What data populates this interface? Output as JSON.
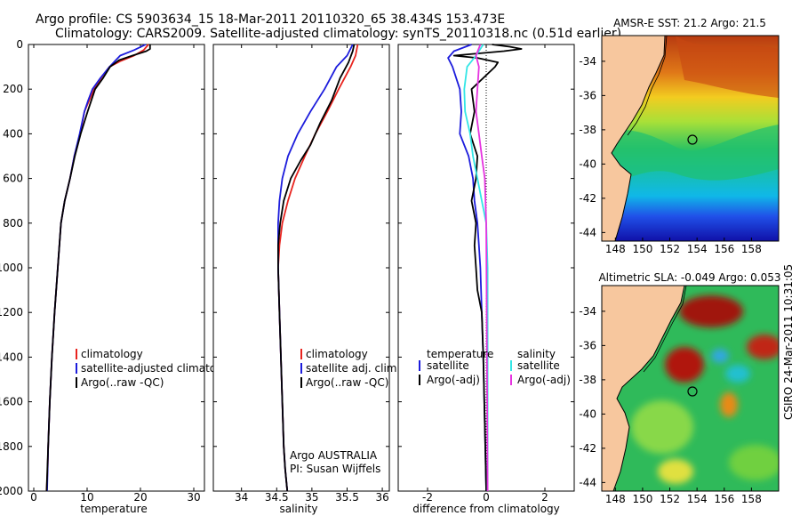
{
  "header": {
    "line1": "Argo profile: CS 5903634_15 18-Mar-2011 20110320_65 38.434S 153.473E",
    "line2": "Climatology: CARS2009. Satellite-adjusted climatology: synTS_20110318.nc (0.51d earlier)"
  },
  "stamp": "CSIRO 24-Mar-2011 10:31:05",
  "colors": {
    "red": "#e8231e",
    "blue": "#1c1cdc",
    "black": "#000000",
    "cyan": "#33e6e6",
    "magenta": "#e633e0"
  },
  "chart_data": [
    {
      "id": "temperature",
      "type": "line",
      "xlabel": "temperature",
      "ylabel": "",
      "xlim": [
        -1,
        32
      ],
      "xticks": [
        0,
        10,
        20,
        30
      ],
      "ylim": [
        2000,
        0
      ],
      "yticks": [
        0,
        200,
        400,
        600,
        800,
        1000,
        1200,
        1400,
        1600,
        1800,
        2000
      ],
      "legend": {
        "placement": "bottom-left",
        "entries": [
          "climatology",
          "satellite-adjusted climatology",
          "Argo(..raw -QC)"
        ]
      },
      "series": [
        {
          "name": "climatology",
          "color": "red",
          "x": [
            21.5,
            20.6,
            18.8,
            16.2,
            14.2,
            12.6,
            11.3,
            10.4,
            9.5,
            8.7,
            7.6,
            6.8,
            5.8,
            5.1,
            4.5,
            3.9,
            3.4,
            3.0,
            2.7,
            2.6,
            2.4
          ],
          "y": [
            0,
            25,
            50,
            75,
            100,
            150,
            200,
            250,
            300,
            400,
            500,
            600,
            700,
            800,
            1000,
            1200,
            1400,
            1600,
            1800,
            1900,
            2000
          ]
        },
        {
          "name": "satellite-adjusted climatology",
          "color": "blue",
          "x": [
            21.0,
            18.8,
            16.2,
            14.2,
            12.5,
            11.0,
            10.2,
            9.5,
            8.6,
            7.6,
            6.8,
            5.8,
            5.1,
            4.5,
            3.9,
            3.4,
            3.0,
            2.7,
            2.5
          ],
          "y": [
            0,
            25,
            50,
            100,
            150,
            200,
            250,
            300,
            400,
            500,
            600,
            700,
            800,
            1000,
            1200,
            1400,
            1600,
            1800,
            2000
          ]
        },
        {
          "name": "Argo(..raw -QC)",
          "color": "black",
          "x": [
            21.8,
            21.8,
            21.1,
            18.5,
            16.0,
            14.3,
            13.0,
            11.5,
            10.1,
            8.8,
            7.7,
            6.8,
            5.8,
            5.1,
            4.5,
            3.9,
            3.4,
            3.0,
            2.7,
            2.4
          ],
          "y": [
            0,
            20,
            30,
            50,
            70,
            100,
            150,
            200,
            300,
            400,
            500,
            600,
            700,
            800,
            1000,
            1200,
            1400,
            1600,
            1800,
            2000
          ]
        }
      ]
    },
    {
      "id": "salinity",
      "type": "line",
      "xlabel": "salinity",
      "ylabel": "",
      "xlim": [
        33.6,
        36.1
      ],
      "xticks": [
        34,
        34.5,
        35,
        35.5,
        36
      ],
      "ylim": [
        2000,
        0
      ],
      "legend": {
        "placement": "bottom-right",
        "entries": [
          "climatology",
          "satellite adj. clim.",
          "Argo(..raw -QC)"
        ]
      },
      "annotation": [
        "Argo AUSTRALIA",
        "PI: Susan Wijffels"
      ],
      "series": [
        {
          "name": "climatology",
          "color": "red",
          "x": [
            35.65,
            35.62,
            35.55,
            35.38,
            35.22,
            35.05,
            34.9,
            34.76,
            34.66,
            34.58,
            34.54,
            34.52,
            34.54,
            34.56,
            34.58,
            34.6,
            34.62,
            34.65
          ],
          "y": [
            0,
            50,
            100,
            200,
            300,
            400,
            500,
            600,
            700,
            800,
            900,
            1000,
            1200,
            1400,
            1600,
            1800,
            1900,
            2000
          ]
        },
        {
          "name": "satellite adj. clim.",
          "color": "blue",
          "x": [
            35.58,
            35.5,
            35.35,
            35.18,
            34.98,
            34.8,
            34.66,
            34.58,
            34.54,
            34.52,
            34.52,
            34.54,
            34.56,
            34.58,
            34.6,
            34.62,
            34.65
          ],
          "y": [
            0,
            50,
            100,
            200,
            300,
            400,
            500,
            600,
            700,
            800,
            1000,
            1200,
            1400,
            1600,
            1800,
            1900,
            2000
          ]
        },
        {
          "name": "Argo(..raw -QC)",
          "color": "black",
          "x": [
            35.6,
            35.58,
            35.52,
            35.4,
            35.28,
            35.12,
            34.98,
            34.84,
            34.7,
            34.6,
            34.55,
            34.52,
            34.52,
            34.54,
            34.56,
            34.58,
            34.6,
            34.62,
            34.65
          ],
          "y": [
            0,
            30,
            80,
            150,
            250,
            350,
            450,
            520,
            600,
            700,
            800,
            900,
            1000,
            1200,
            1400,
            1600,
            1800,
            1900,
            2000
          ]
        }
      ]
    },
    {
      "id": "difference",
      "type": "line",
      "xlabel": "difference from climatology",
      "ylabel": "",
      "xlim": [
        -3.0,
        3.0
      ],
      "xticks": [
        -2,
        0,
        2
      ],
      "ylim": [
        2000,
        0
      ],
      "legend": {
        "placement": "bottom",
        "entries": [
          "temperature",
          "satellite",
          "Argo(-adj)",
          "salinity",
          "satellite",
          "Argo(-adj)"
        ]
      },
      "series": [
        {
          "name": "temperature satellite",
          "color": "blue",
          "x": [
            -0.5,
            -1.1,
            -1.3,
            -1.15,
            -0.9,
            -0.85,
            -0.9,
            -0.6,
            -0.45,
            -0.4,
            -0.3,
            -0.25,
            -0.2,
            -0.15,
            -0.1,
            -0.05,
            0.0
          ],
          "y": [
            0,
            30,
            60,
            100,
            200,
            300,
            400,
            500,
            600,
            700,
            800,
            900,
            1000,
            1200,
            1400,
            1700,
            2000
          ]
        },
        {
          "name": "temperature Argo(-adj)",
          "color": "black",
          "x": [
            0.2,
            0.8,
            1.2,
            0.6,
            -1.1,
            -0.3,
            0.4,
            0.3,
            -0.5,
            -0.4,
            -0.55,
            -0.3,
            -0.35,
            -0.5,
            -0.35,
            -0.4,
            -0.35,
            -0.3,
            -0.15,
            -0.1,
            -0.05,
            0.0
          ],
          "y": [
            0,
            10,
            20,
            30,
            50,
            60,
            80,
            100,
            200,
            300,
            400,
            500,
            600,
            700,
            800,
            900,
            1000,
            1100,
            1200,
            1400,
            1700,
            2000
          ]
        },
        {
          "name": "salinity satellite",
          "color": "cyan",
          "x": [
            -0.1,
            -0.35,
            -0.65,
            -0.75,
            -0.72,
            -0.55,
            -0.45,
            -0.3,
            -0.15,
            0.0,
            0.05,
            0.05,
            0.05
          ],
          "y": [
            0,
            50,
            100,
            200,
            300,
            400,
            500,
            600,
            700,
            800,
            1000,
            1500,
            2000
          ]
        },
        {
          "name": "salinity Argo(-adj)",
          "color": "magenta",
          "x": [
            -0.2,
            -0.35,
            -0.25,
            -0.3,
            -0.35,
            -0.25,
            -0.15,
            -0.05,
            0.0,
            0.05
          ],
          "y": [
            0,
            50,
            100,
            200,
            300,
            400,
            500,
            600,
            800,
            2000
          ]
        }
      ]
    },
    {
      "id": "sst_map",
      "type": "heatmap",
      "title": "AMSR-E SST: 21.2 Argo: 21.5",
      "xlim": [
        147,
        160
      ],
      "xticks": [
        148,
        150,
        152,
        154,
        156,
        158
      ],
      "ylim": [
        -44.5,
        -32.5
      ],
      "yticks": [
        -34,
        -36,
        -38,
        -40,
        -42,
        -44
      ],
      "float_position": {
        "lon": 153.473,
        "lat": -38.434
      }
    },
    {
      "id": "sla_map",
      "type": "heatmap",
      "title": "Altimetric SLA: -0.049 Argo: 0.053",
      "xlim": [
        147,
        160
      ],
      "xticks": [
        148,
        150,
        152,
        154,
        156,
        158
      ],
      "ylim": [
        -44.5,
        -32.5
      ],
      "yticks": [
        -34,
        -36,
        -38,
        -40,
        -42,
        -44
      ],
      "float_position": {
        "lon": 153.473,
        "lat": -38.434
      }
    }
  ]
}
